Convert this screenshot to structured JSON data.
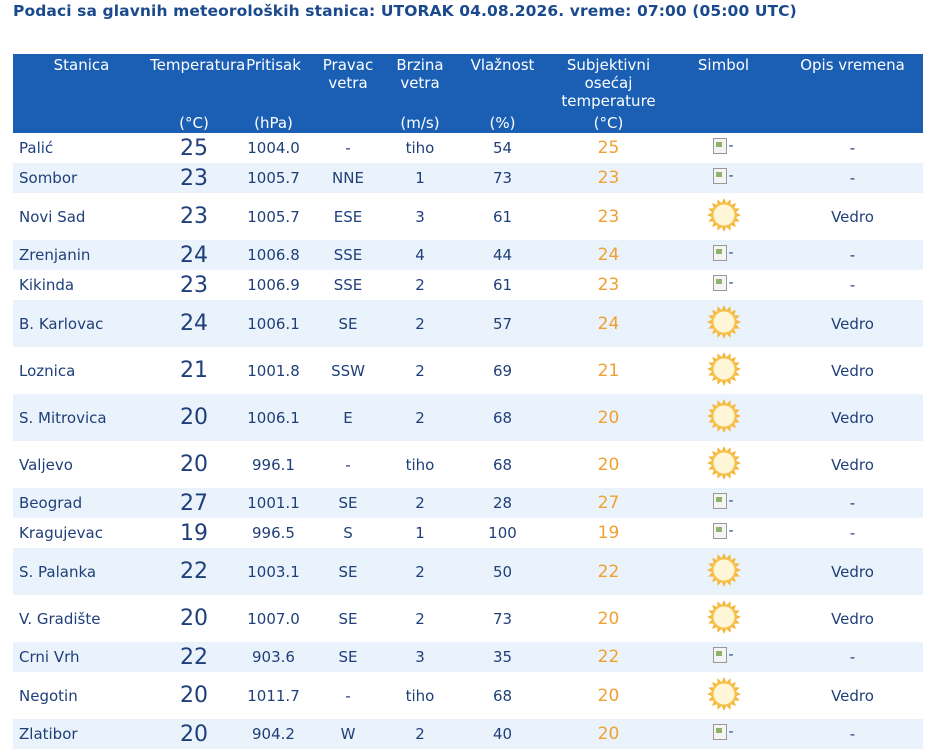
{
  "header": {
    "title": "Podaci sa glavnih meteoroloških stanica:  UTORAK 04.08.2026.  vreme: 07:00 (05:00 UTC)"
  },
  "columns": [
    {
      "label": "Stanica",
      "unit": ""
    },
    {
      "label": "Temperatura",
      "unit": "(°C)"
    },
    {
      "label": "Pritisak",
      "unit": "(hPa)"
    },
    {
      "label": "Pravac vetra",
      "unit": ""
    },
    {
      "label": "Brzina vetra",
      "unit": "(m/s)"
    },
    {
      "label": "Vlažnost",
      "unit": "(%)"
    },
    {
      "label": "Subjektivni osećaj temperature",
      "unit": "(°C)"
    },
    {
      "label": "Simbol",
      "unit": ""
    },
    {
      "label": "Opis vremena",
      "unit": ""
    }
  ],
  "symbols": {
    "sun": "sun-icon",
    "missing": "broken-image-icon",
    "missing_alt": "-"
  },
  "colors": {
    "header_bg": "#1a5fb4",
    "feel_color": "#f0a030",
    "row_alt": "#eaf3fb"
  },
  "rows": [
    {
      "station": "Palić",
      "temp": "25",
      "pressure": "1004.0",
      "dir": "-",
      "speed": "tiho",
      "hum": "54",
      "feel": "25",
      "symbol": "missing",
      "desc": "-"
    },
    {
      "station": "Sombor",
      "temp": "23",
      "pressure": "1005.7",
      "dir": "NNE",
      "speed": "1",
      "hum": "73",
      "feel": "23",
      "symbol": "missing",
      "desc": "-"
    },
    {
      "station": "Novi Sad",
      "temp": "23",
      "pressure": "1005.7",
      "dir": "ESE",
      "speed": "3",
      "hum": "61",
      "feel": "23",
      "symbol": "sun",
      "desc": "Vedro"
    },
    {
      "station": "Zrenjanin",
      "temp": "24",
      "pressure": "1006.8",
      "dir": "SSE",
      "speed": "4",
      "hum": "44",
      "feel": "24",
      "symbol": "missing",
      "desc": "-"
    },
    {
      "station": "Kikinda",
      "temp": "23",
      "pressure": "1006.9",
      "dir": "SSE",
      "speed": "2",
      "hum": "61",
      "feel": "23",
      "symbol": "missing",
      "desc": "-"
    },
    {
      "station": "B. Karlovac",
      "temp": "24",
      "pressure": "1006.1",
      "dir": "SE",
      "speed": "2",
      "hum": "57",
      "feel": "24",
      "symbol": "sun",
      "desc": "Vedro"
    },
    {
      "station": "Loznica",
      "temp": "21",
      "pressure": "1001.8",
      "dir": "SSW",
      "speed": "2",
      "hum": "69",
      "feel": "21",
      "symbol": "sun",
      "desc": "Vedro"
    },
    {
      "station": "S. Mitrovica",
      "temp": "20",
      "pressure": "1006.1",
      "dir": "E",
      "speed": "2",
      "hum": "68",
      "feel": "20",
      "symbol": "sun",
      "desc": "Vedro"
    },
    {
      "station": "Valjevo",
      "temp": "20",
      "pressure": "996.1",
      "dir": "-",
      "speed": "tiho",
      "hum": "68",
      "feel": "20",
      "symbol": "sun",
      "desc": "Vedro"
    },
    {
      "station": "Beograd",
      "temp": "27",
      "pressure": "1001.1",
      "dir": "SE",
      "speed": "2",
      "hum": "28",
      "feel": "27",
      "symbol": "missing",
      "desc": "-"
    },
    {
      "station": "Kragujevac",
      "temp": "19",
      "pressure": "996.5",
      "dir": "S",
      "speed": "1",
      "hum": "100",
      "feel": "19",
      "symbol": "missing",
      "desc": "-"
    },
    {
      "station": "S. Palanka",
      "temp": "22",
      "pressure": "1003.1",
      "dir": "SE",
      "speed": "2",
      "hum": "50",
      "feel": "22",
      "symbol": "sun",
      "desc": "Vedro"
    },
    {
      "station": "V. Gradište",
      "temp": "20",
      "pressure": "1007.0",
      "dir": "SE",
      "speed": "2",
      "hum": "73",
      "feel": "20",
      "symbol": "sun",
      "desc": "Vedro"
    },
    {
      "station": "Crni Vrh",
      "temp": "22",
      "pressure": "903.6",
      "dir": "SE",
      "speed": "3",
      "hum": "35",
      "feel": "22",
      "symbol": "missing",
      "desc": "-"
    },
    {
      "station": "Negotin",
      "temp": "20",
      "pressure": "1011.7",
      "dir": "-",
      "speed": "tiho",
      "hum": "68",
      "feel": "20",
      "symbol": "sun",
      "desc": "Vedro"
    },
    {
      "station": "Zlatibor",
      "temp": "20",
      "pressure": "904.2",
      "dir": "W",
      "speed": "2",
      "hum": "40",
      "feel": "20",
      "symbol": "missing",
      "desc": "-"
    }
  ]
}
